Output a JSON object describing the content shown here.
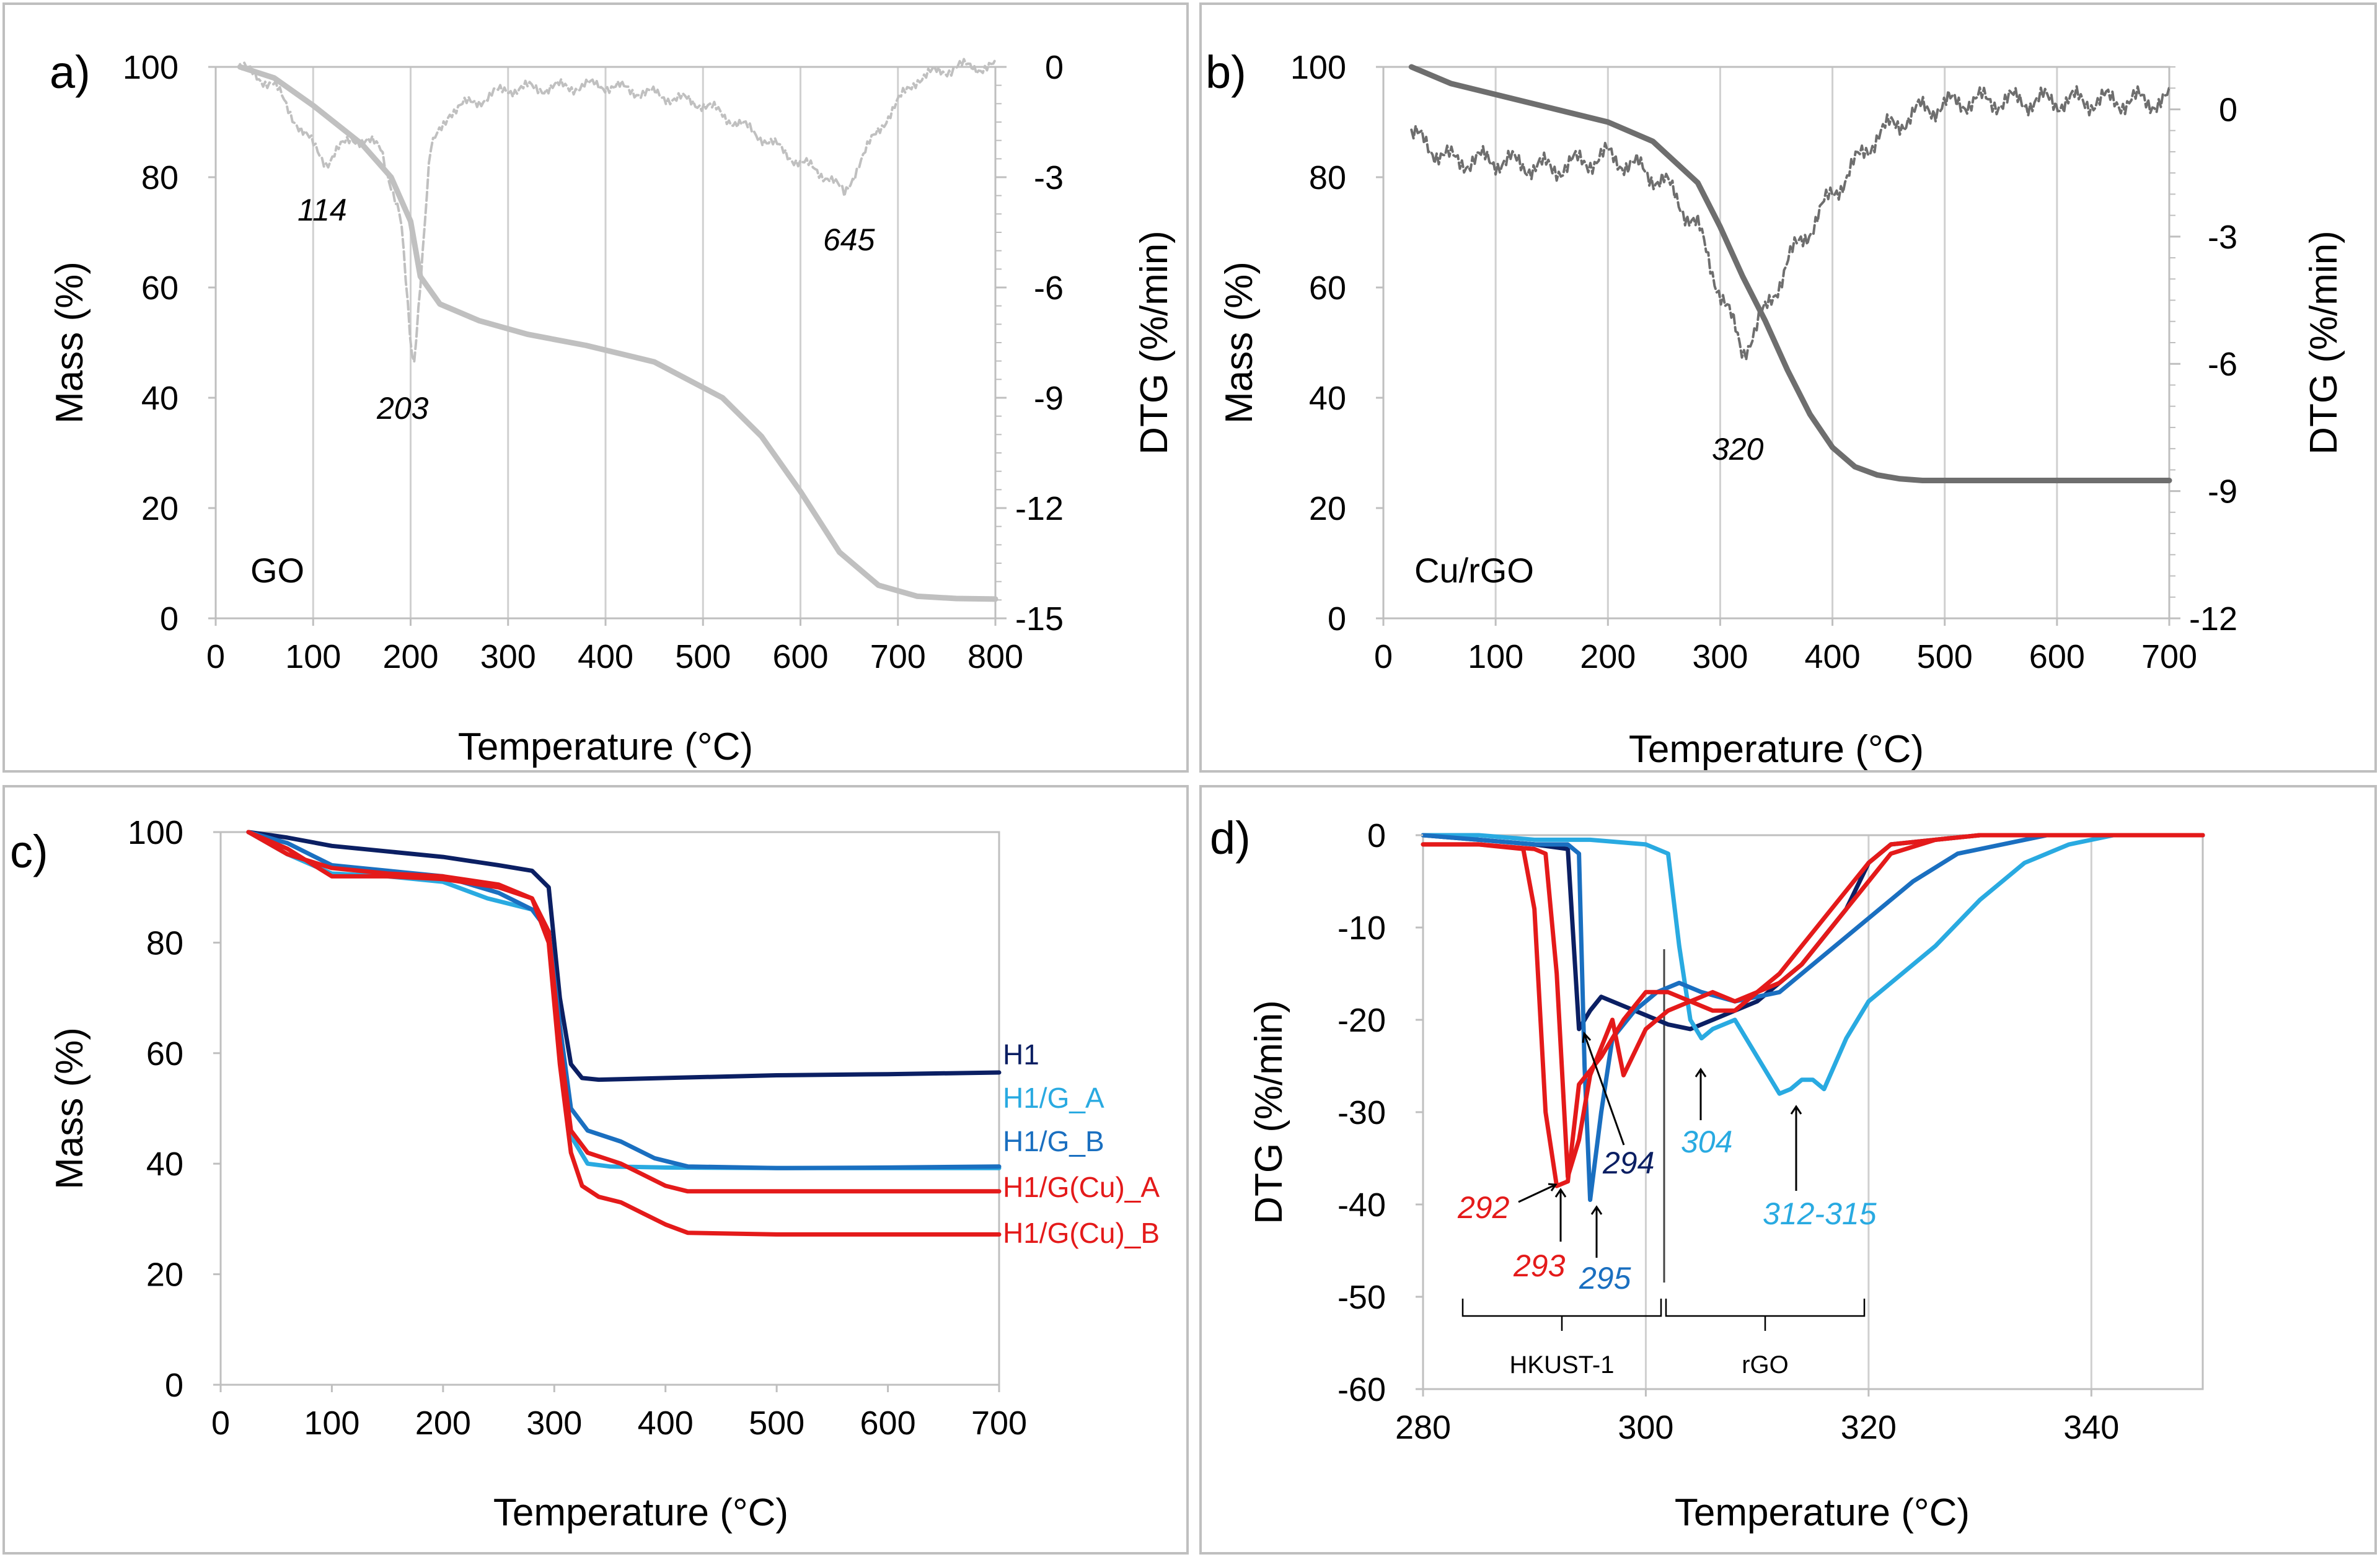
{
  "chart_data": [
    {
      "panel": "a)",
      "type": "line",
      "xlabel": "Temperature (°C)",
      "ylabel": "Mass (%)",
      "y2label": "DTG (%/min)",
      "xlim": [
        0,
        800
      ],
      "xticks": [
        "0",
        "100",
        "200",
        "300",
        "400",
        "500",
        "600",
        "700",
        "800"
      ],
      "ylim": [
        0,
        100
      ],
      "yticks": [
        "0",
        "20",
        "40",
        "60",
        "80",
        "100"
      ],
      "y2lim": [
        -15,
        0
      ],
      "y2ticks": [
        "-15",
        "-12",
        "-9",
        "-6",
        "-3",
        "0"
      ],
      "sample_label": "GO",
      "series": [
        {
          "name": "Mass",
          "axis": "left",
          "color": "#c0c0c0",
          "style": "solid",
          "x": [
            25,
            60,
            100,
            150,
            180,
            200,
            210,
            230,
            270,
            320,
            380,
            450,
            520,
            560,
            600,
            640,
            680,
            720,
            760,
            800
          ],
          "y": [
            100,
            98,
            93,
            86,
            80,
            72,
            62,
            57,
            54,
            51.5,
            49.5,
            46.5,
            40,
            33,
            23,
            12,
            6,
            4,
            3.6,
            3.5
          ]
        },
        {
          "name": "DTG",
          "axis": "right",
          "color": "#c0c0c0",
          "style": "dashed",
          "x": [
            25,
            60,
            90,
            114,
            140,
            170,
            190,
            200,
            203,
            210,
            220,
            240,
            300,
            400,
            500,
            560,
            600,
            630,
            645,
            660,
            690,
            720,
            760,
            800
          ],
          "y": [
            0,
            -0.5,
            -1.8,
            -2.6,
            -1.9,
            -2.2,
            -4.2,
            -7.5,
            -8.2,
            -5.8,
            -2.3,
            -1.2,
            -0.6,
            -0.5,
            -1.0,
            -1.9,
            -2.6,
            -3.0,
            -3.5,
            -2.6,
            -1.3,
            -0.3,
            0,
            0
          ]
        }
      ],
      "annotations": [
        "114",
        "203",
        "645"
      ]
    },
    {
      "panel": "b)",
      "type": "line",
      "xlabel": "Temperature (°C)",
      "ylabel": "Mass (%)",
      "y2label": "DTG (%/min)",
      "xlim": [
        0,
        700
      ],
      "xticks": [
        "0",
        "100",
        "200",
        "300",
        "400",
        "500",
        "600",
        "700"
      ],
      "ylim": [
        0,
        100
      ],
      "yticks": [
        "0",
        "20",
        "40",
        "60",
        "80",
        "100"
      ],
      "y2lim": [
        -12,
        1
      ],
      "y2ticks": [
        "-12",
        "-9",
        "-6",
        "-3",
        "0"
      ],
      "sample_label": "Cu/rGO",
      "series": [
        {
          "name": "Mass",
          "axis": "left",
          "color": "#6e6e6e",
          "style": "solid",
          "x": [
            25,
            60,
            100,
            150,
            200,
            240,
            280,
            300,
            320,
            340,
            360,
            380,
            400,
            420,
            440,
            460,
            480,
            520,
            600,
            700
          ],
          "y": [
            100,
            97,
            95,
            92.5,
            90,
            86.5,
            79,
            71,
            62,
            54,
            45,
            37,
            31,
            27.5,
            26,
            25.3,
            25,
            25,
            25,
            25
          ]
        },
        {
          "name": "DTG",
          "axis": "right",
          "color": "#6e6e6e",
          "style": "dashed",
          "x": [
            25,
            60,
            100,
            150,
            200,
            220,
            250,
            280,
            300,
            320,
            340,
            360,
            380,
            400,
            420,
            440,
            480,
            520,
            560,
            600,
            650,
            700
          ],
          "y": [
            -0.6,
            -1.2,
            -1.2,
            -1.4,
            -1.1,
            -1.3,
            -1.7,
            -2.8,
            -4.3,
            -5.7,
            -4.8,
            -3.6,
            -2.8,
            -2.0,
            -1.3,
            -0.6,
            0,
            0.2,
            0.2,
            0.2,
            0.2,
            0.2
          ]
        }
      ],
      "annotations": [
        "320"
      ]
    },
    {
      "panel": "c)",
      "type": "line",
      "xlabel": "Temperature (°C)",
      "ylabel": "Mass (%)",
      "xlim": [
        0,
        700
      ],
      "xticks": [
        "0",
        "100",
        "200",
        "300",
        "400",
        "500",
        "600",
        "700"
      ],
      "ylim": [
        0,
        100
      ],
      "yticks": [
        "0",
        "20",
        "40",
        "60",
        "80",
        "100"
      ],
      "series": [
        {
          "name": "H1",
          "color": "#0b1f63",
          "x": [
            25,
            60,
            100,
            150,
            200,
            250,
            280,
            295,
            305,
            315,
            325,
            340,
            400,
            500,
            600,
            700
          ],
          "y": [
            100,
            99,
            97.5,
            96.5,
            95.5,
            94,
            93,
            90,
            70,
            58,
            55.5,
            55.2,
            55.5,
            56,
            56.2,
            56.5
          ]
        },
        {
          "name": "H1/G_A",
          "color": "#29aae1",
          "x": [
            25,
            60,
            100,
            150,
            200,
            240,
            280,
            295,
            305,
            315,
            330,
            350,
            400,
            500,
            600,
            700
          ],
          "y": [
            100,
            96,
            92.5,
            92,
            91,
            88,
            86,
            82,
            62,
            45,
            40,
            39.5,
            39.3,
            39.2,
            39.2,
            39.2
          ]
        },
        {
          "name": "H1/G_B",
          "color": "#1a6fc0",
          "x": [
            25,
            60,
            100,
            150,
            200,
            250,
            280,
            295,
            305,
            315,
            330,
            360,
            390,
            420,
            500,
            600,
            700
          ],
          "y": [
            100,
            98,
            94,
            93,
            92,
            89,
            86,
            82,
            65,
            50,
            46,
            44,
            41,
            39.5,
            39.2,
            39.3,
            39.5
          ]
        },
        {
          "name": "H1/G(Cu)_A",
          "color": "#e41a1a",
          "x": [
            25,
            60,
            100,
            150,
            200,
            250,
            280,
            295,
            305,
            315,
            330,
            360,
            380,
            400,
            420,
            500,
            600,
            700
          ],
          "y": [
            100,
            97,
            92,
            92,
            91.5,
            90,
            88,
            82,
            62,
            46,
            42,
            40,
            38,
            36,
            35,
            35,
            35,
            35
          ]
        },
        {
          "name": "H1/G(Cu)_B",
          "color": "#e41a1a",
          "x": [
            25,
            60,
            100,
            150,
            200,
            250,
            280,
            295,
            305,
            315,
            325,
            340,
            360,
            380,
            400,
            420,
            500,
            600,
            700
          ],
          "y": [
            100,
            96,
            93.5,
            92.5,
            92,
            90.5,
            88,
            80,
            58,
            42,
            36,
            34,
            33,
            31,
            29,
            27.5,
            27.2,
            27.2,
            27.2
          ]
        }
      ]
    },
    {
      "panel": "d)",
      "type": "line",
      "xlabel": "Temperature (°C)",
      "ylabel": "DTG (%/min)",
      "xlim": [
        280,
        350
      ],
      "xticks": [
        "280",
        "300",
        "320",
        "340"
      ],
      "ylim": [
        -60,
        0
      ],
      "yticks": [
        "-60",
        "-50",
        "-40",
        "-30",
        "-20",
        "-10",
        "0"
      ],
      "series": [
        {
          "name": "H1",
          "color": "#0b1f63",
          "x": [
            280,
            285,
            290,
            293,
            294,
            295,
            296,
            298,
            300,
            302,
            304,
            306,
            310,
            314,
            318,
            320,
            322,
            326,
            330,
            335,
            340,
            345,
            350
          ],
          "y": [
            0,
            -0.5,
            -1,
            -1.5,
            -21,
            -19,
            -17.5,
            -18.5,
            -19.5,
            -20.5,
            -21,
            -20,
            -18,
            -14,
            -8,
            -3,
            -1,
            -0.5,
            0,
            0,
            0,
            0,
            0
          ]
        },
        {
          "name": "H1/G_A",
          "color": "#29aae1",
          "x": [
            280,
            285,
            290,
            295,
            300,
            302,
            303,
            304,
            305,
            306,
            308,
            310,
            312,
            313,
            314,
            315,
            316,
            318,
            320,
            322,
            326,
            330,
            334,
            338,
            342,
            346,
            350
          ],
          "y": [
            0,
            0,
            -0.5,
            -0.5,
            -1,
            -2,
            -12,
            -20,
            -22,
            -21,
            -20,
            -24,
            -28,
            -27.5,
            -26.5,
            -26.5,
            -27.5,
            -22,
            -18,
            -16,
            -12,
            -7,
            -3,
            -1,
            0,
            0,
            0
          ]
        },
        {
          "name": "H1/G_B",
          "color": "#1a6fc0",
          "x": [
            280,
            285,
            290,
            293,
            294,
            294.5,
            295,
            296,
            297,
            299,
            301,
            303,
            305,
            308,
            312,
            316,
            320,
            324,
            328,
            332,
            336,
            340,
            345,
            350
          ],
          "y": [
            0,
            -0.5,
            -1,
            -1,
            -2,
            -25,
            -39.5,
            -30,
            -22,
            -19,
            -17,
            -16,
            -17,
            -18,
            -17,
            -13,
            -9,
            -5,
            -2,
            -1,
            0,
            0,
            0,
            0
          ]
        },
        {
          "name": "H1/G(Cu)_A",
          "color": "#e41a1a",
          "x": [
            280,
            285,
            289,
            290,
            291,
            292,
            293,
            294,
            296,
            298,
            300,
            302,
            304,
            306,
            308,
            310,
            312,
            314,
            316,
            318,
            320,
            322,
            326,
            330,
            335,
            340,
            345,
            350
          ],
          "y": [
            -1,
            -1,
            -1.5,
            -8,
            -30,
            -38,
            -37.5,
            -27,
            -24,
            -20,
            -17,
            -17,
            -18,
            -19,
            -19,
            -17,
            -15,
            -12,
            -9,
            -6,
            -3,
            -1,
            -0.5,
            0,
            0,
            0,
            0,
            0
          ]
        },
        {
          "name": "H1/G(Cu)_B",
          "color": "#e41a1a",
          "x": [
            280,
            285,
            290,
            291,
            292,
            293,
            294,
            295,
            296,
            297,
            298,
            300,
            302,
            304,
            306,
            308,
            310,
            312,
            314,
            316,
            318,
            320,
            322,
            326,
            330,
            335,
            340,
            345,
            350
          ],
          "y": [
            -1,
            -1,
            -1.5,
            -2,
            -15,
            -37,
            -33,
            -26,
            -23,
            -20,
            -26,
            -21,
            -19,
            -18,
            -17,
            -18,
            -17,
            -16,
            -14,
            -11,
            -8,
            -5,
            -2,
            -0.5,
            0,
            0,
            0,
            0,
            0
          ]
        }
      ],
      "annotations": [
        {
          "text": "292",
          "color": "#e41a1a"
        },
        {
          "text": "293",
          "color": "#e41a1a"
        },
        {
          "text": "294",
          "color": "#0b1f63"
        },
        {
          "text": "295",
          "color": "#1a6fc0"
        },
        {
          "text": "304",
          "color": "#29aae1"
        },
        {
          "text": "312-315",
          "color": "#29aae1"
        }
      ],
      "brackets": [
        "HKUST-1",
        "rGO"
      ]
    }
  ]
}
